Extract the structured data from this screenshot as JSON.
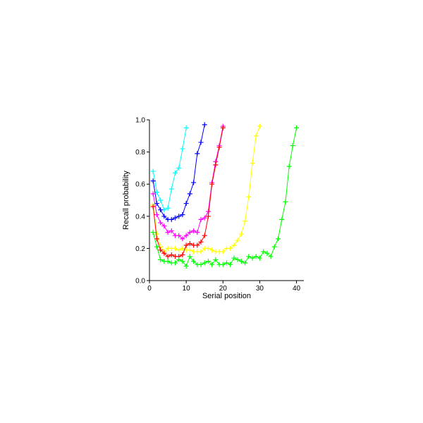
{
  "chart_data": {
    "type": "line",
    "xlabel": "Serial position",
    "ylabel": "Recall probability",
    "xlim": [
      0,
      42
    ],
    "ylim": [
      0,
      1
    ],
    "xticks": [
      0,
      10,
      20,
      30,
      40
    ],
    "yticks": [
      0.0,
      0.2,
      0.4,
      0.6,
      0.8,
      1.0
    ],
    "xtick_labels": [
      "0",
      "10",
      "20",
      "30",
      "40"
    ],
    "ytick_labels": [
      "0.0",
      "0.2",
      "0.4",
      "0.6",
      "0.8",
      "1.0"
    ],
    "grid": false,
    "marker": "plus",
    "series": [
      {
        "color": "#ffff00",
        "x": [
          1,
          2,
          3,
          4,
          5,
          6,
          7,
          8,
          9,
          10,
          11,
          12,
          13,
          14,
          15,
          16,
          17,
          18,
          19,
          20,
          21,
          22,
          23,
          24,
          25,
          26,
          27,
          28,
          29,
          30
        ],
        "values": [
          0.47,
          0.29,
          0.21,
          0.18,
          0.2,
          0.2,
          0.2,
          0.19,
          0.2,
          0.19,
          0.19,
          0.18,
          0.18,
          0.18,
          0.2,
          0.2,
          0.19,
          0.18,
          0.18,
          0.18,
          0.2,
          0.2,
          0.22,
          0.25,
          0.29,
          0.37,
          0.52,
          0.73,
          0.9,
          0.96
        ]
      },
      {
        "color": "#00ffff",
        "x": [
          1,
          2,
          3,
          4,
          5,
          6,
          7,
          8,
          9,
          10
        ],
        "values": [
          0.68,
          0.55,
          0.5,
          0.44,
          0.45,
          0.57,
          0.67,
          0.7,
          0.82,
          0.95
        ]
      },
      {
        "color": "#0000ff",
        "x": [
          1,
          2,
          3,
          4,
          5,
          6,
          7,
          8,
          9,
          10,
          11,
          12,
          13,
          14,
          15
        ],
        "values": [
          0.62,
          0.48,
          0.44,
          0.4,
          0.38,
          0.38,
          0.39,
          0.4,
          0.41,
          0.48,
          0.54,
          0.61,
          0.79,
          0.86,
          0.97
        ]
      },
      {
        "color": "#ff00ff",
        "x": [
          1,
          2,
          3,
          4,
          5,
          6,
          7,
          8,
          9,
          10,
          11,
          12,
          13,
          14,
          15,
          16,
          17,
          18,
          19,
          20
        ],
        "values": [
          0.54,
          0.41,
          0.36,
          0.34,
          0.3,
          0.31,
          0.28,
          0.28,
          0.26,
          0.28,
          0.3,
          0.31,
          0.3,
          0.38,
          0.39,
          0.43,
          0.61,
          0.74,
          0.84,
          0.96
        ]
      },
      {
        "color": "#ff0000",
        "x": [
          1,
          2,
          3,
          4,
          5,
          6,
          7,
          8,
          9,
          10,
          11,
          12,
          13,
          14,
          15,
          16,
          17,
          18,
          19,
          20
        ],
        "values": [
          0.46,
          0.26,
          0.19,
          0.17,
          0.15,
          0.16,
          0.15,
          0.15,
          0.16,
          0.22,
          0.23,
          0.22,
          0.22,
          0.24,
          0.28,
          0.4,
          0.6,
          0.72,
          0.83,
          0.95
        ]
      },
      {
        "color": "#00ff00",
        "x": [
          1,
          2,
          3,
          4,
          5,
          6,
          7,
          8,
          9,
          10,
          11,
          12,
          13,
          14,
          15,
          16,
          17,
          18,
          19,
          20,
          21,
          22,
          23,
          24,
          25,
          26,
          27,
          28,
          29,
          30,
          31,
          32,
          33,
          34,
          35,
          36,
          37,
          38,
          39,
          40
        ],
        "values": [
          0.3,
          0.21,
          0.13,
          0.12,
          0.12,
          0.11,
          0.11,
          0.13,
          0.12,
          0.09,
          0.15,
          0.12,
          0.1,
          0.1,
          0.11,
          0.12,
          0.1,
          0.13,
          0.1,
          0.1,
          0.11,
          0.1,
          0.14,
          0.13,
          0.12,
          0.11,
          0.15,
          0.14,
          0.15,
          0.14,
          0.18,
          0.17,
          0.15,
          0.21,
          0.26,
          0.38,
          0.49,
          0.71,
          0.84,
          0.95
        ]
      }
    ]
  }
}
